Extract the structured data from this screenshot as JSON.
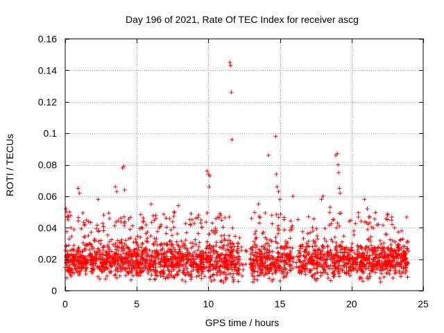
{
  "chart_data": {
    "type": "scatter",
    "title": "Day 196 of 2021, Rate Of TEC Index for receiver ascg",
    "xlabel": "GPS time / hours",
    "ylabel": "ROTI / TECUs",
    "xlim": [
      0,
      25
    ],
    "ylim": [
      0,
      0.16
    ],
    "xticks": [
      0,
      5,
      10,
      15,
      20,
      25
    ],
    "xtick_labels": [
      "0",
      "5",
      "10",
      "15",
      "20",
      "25"
    ],
    "yticks": [
      0,
      0.02,
      0.04,
      0.06,
      0.08,
      0.1,
      0.12,
      0.14,
      0.16
    ],
    "ytick_labels": [
      "0",
      "0.02",
      "0.04",
      "0.06",
      "0.08",
      "0.1",
      "0.12",
      "0.14",
      "0.16"
    ],
    "grid": true,
    "marker": "+",
    "color": "#ff0000",
    "series": [
      {
        "name": "ROTI",
        "x": [
          0.05,
          0.1,
          0.15,
          0.2,
          0.3,
          0.4,
          0.9,
          1.0,
          2.3,
          3.5,
          3.6,
          4.0,
          4.1,
          4.15,
          6.0,
          7.6,
          7.9,
          9.9,
          10.0,
          10.05,
          10.1,
          11.5,
          11.55,
          11.6,
          11.65,
          13.5,
          14.2,
          14.7,
          14.75,
          14.8,
          14.9,
          15.0,
          15.9,
          17.9,
          18.0,
          18.5,
          18.9,
          19.0,
          19.05,
          19.1,
          19.15,
          19.2,
          20.9,
          21.1,
          22.5,
          23.0,
          23.5
        ],
        "y": [
          0.052,
          0.05,
          0.047,
          0.045,
          0.05,
          0.04,
          0.065,
          0.062,
          0.058,
          0.066,
          0.063,
          0.078,
          0.079,
          0.064,
          0.055,
          0.05,
          0.054,
          0.076,
          0.074,
          0.066,
          0.073,
          0.145,
          0.143,
          0.126,
          0.096,
          0.055,
          0.086,
          0.098,
          0.074,
          0.066,
          0.063,
          0.058,
          0.06,
          0.058,
          0.06,
          0.053,
          0.086,
          0.087,
          0.08,
          0.075,
          0.065,
          0.062,
          0.058,
          0.052,
          0.048,
          0.04,
          0.038
        ]
      }
    ],
    "dense_band": {
      "x_range": [
        0,
        24
      ],
      "y_range": [
        0.003,
        0.035
      ],
      "typical": 0.016
    }
  }
}
